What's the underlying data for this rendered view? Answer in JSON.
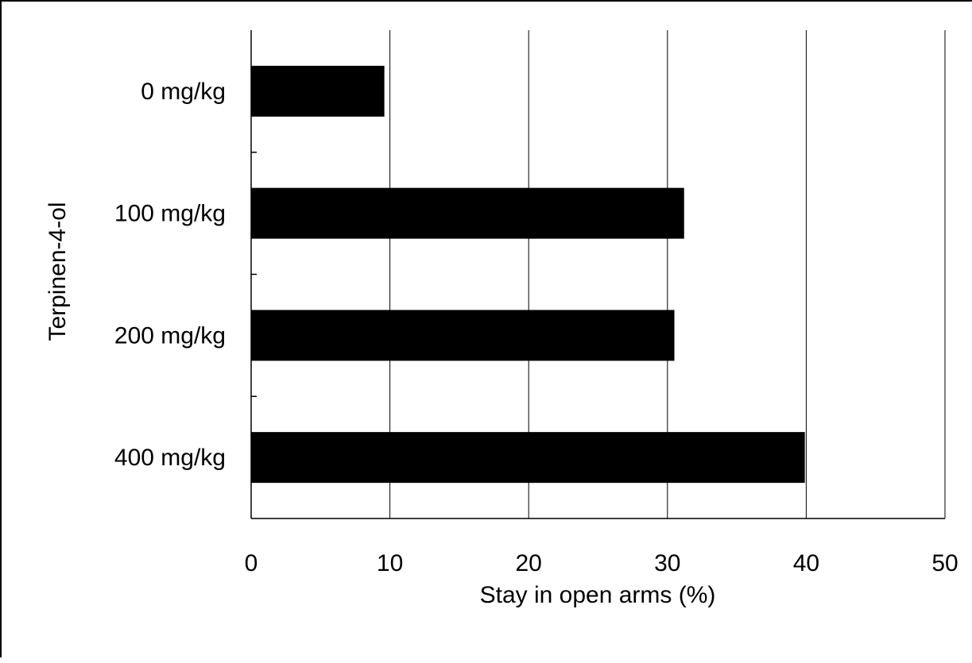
{
  "chart_data": {
    "type": "bar",
    "orientation": "horizontal",
    "categories": [
      "0 mg/kg",
      "100 mg/kg",
      "200 mg/kg",
      "400 mg/kg"
    ],
    "values": [
      9.6,
      31.2,
      30.5,
      39.9
    ],
    "xlabel": "Stay in open arms (%)",
    "ylabel": "Terpinen-4-ol",
    "xlim": [
      0,
      50
    ],
    "xticks": [
      0,
      10,
      20,
      30,
      40,
      50
    ],
    "xtick_labels": [
      "0",
      "10",
      "20",
      "30",
      "40",
      "50"
    ],
    "grid": "vertical",
    "legend": "none",
    "bar_color": "#000000"
  }
}
